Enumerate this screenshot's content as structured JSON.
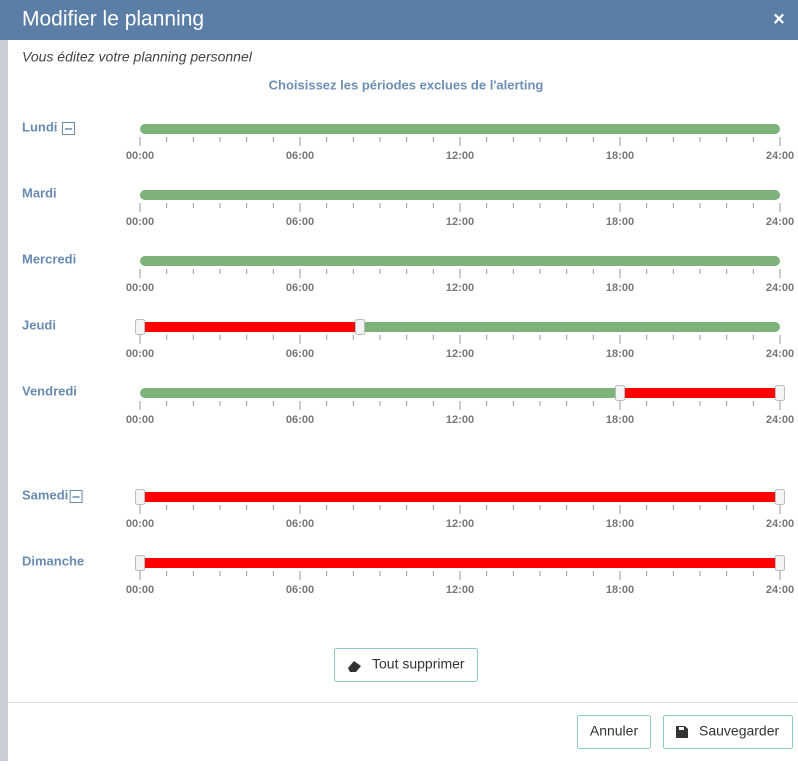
{
  "dialog": {
    "title": "Modifier le planning",
    "close": "×",
    "subtitle": "Vous éditez votre planning personnel",
    "heading": "Choisissez les périodes exclues de l'alerting",
    "scale": {
      "min": 0,
      "max": 24,
      "ticks": [
        {
          "value": 0,
          "label": "00:00"
        },
        {
          "value": 6,
          "label": "06:00"
        },
        {
          "value": 12,
          "label": "12:00"
        },
        {
          "value": 18,
          "label": "18:00"
        },
        {
          "value": 24,
          "label": "24:00"
        }
      ]
    },
    "groups": [
      {
        "days": [
          {
            "name": "Lundi",
            "excluded": []
          },
          {
            "name": "Mardi",
            "excluded": []
          },
          {
            "name": "Mercredi",
            "excluded": []
          },
          {
            "name": "Jeudi",
            "excluded": [
              {
                "start": 0,
                "end": 8.25
              }
            ]
          },
          {
            "name": "Vendredi",
            "excluded": [
              {
                "start": 18,
                "end": 24
              }
            ]
          }
        ]
      },
      {
        "days": [
          {
            "name": "Samedi",
            "excluded": [
              {
                "start": 0,
                "end": 24
              }
            ]
          },
          {
            "name": "Dimanche",
            "excluded": [
              {
                "start": 0,
                "end": 24
              }
            ]
          }
        ]
      }
    ],
    "buttons": {
      "clear": "Tout supprimer",
      "cancel": "Annuler",
      "save": "Sauvegarder"
    }
  }
}
